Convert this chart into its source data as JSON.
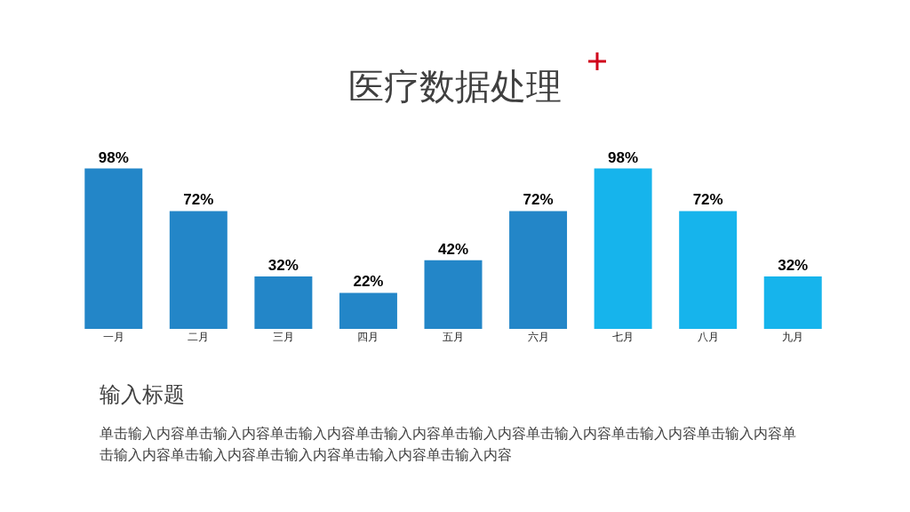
{
  "chart_data": {
    "type": "bar",
    "title": "医疗数据处理",
    "categories": [
      "一月",
      "二月",
      "三月",
      "四月",
      "五月",
      "六月",
      "七月",
      "八月",
      "九月"
    ],
    "values": [
      98,
      72,
      32,
      22,
      42,
      72,
      98,
      72,
      32
    ],
    "value_labels": [
      "98%",
      "72%",
      "32%",
      "22%",
      "42%",
      "72%",
      "98%",
      "72%",
      "32%"
    ],
    "colors": [
      "#2386c8",
      "#2386c8",
      "#2386c8",
      "#2386c8",
      "#2386c8",
      "#2386c8",
      "#16b4ec",
      "#16b4ec",
      "#16b4ec"
    ],
    "tick_labels": "x",
    "grid": false,
    "legend": false,
    "annotations": [
      "输入标题",
      "单击输入内容单击输入内容单击输入内容单击输入内容单击输入内容单击输入内容单击输入内容单击输入内容单击输入内容单击输入内容单击输入内容单击输入内容单击输入内容"
    ]
  }
}
